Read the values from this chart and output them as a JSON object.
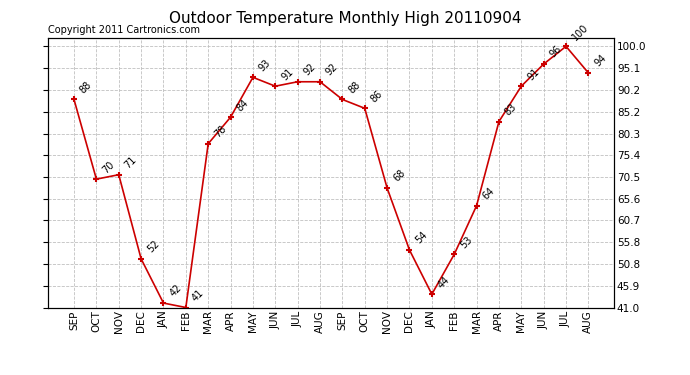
{
  "title": "Outdoor Temperature Monthly High 20110904",
  "copyright": "Copyright 2011 Cartronics.com",
  "months": [
    "SEP",
    "OCT",
    "NOV",
    "DEC",
    "JAN",
    "FEB",
    "MAR",
    "APR",
    "MAY",
    "JUN",
    "JUL",
    "AUG",
    "SEP",
    "OCT",
    "NOV",
    "DEC",
    "JAN",
    "FEB",
    "MAR",
    "APR",
    "MAY",
    "JUN",
    "JUL",
    "AUG"
  ],
  "values": [
    88,
    70,
    71,
    52,
    42,
    41,
    78,
    84,
    93,
    91,
    92,
    92,
    88,
    86,
    68,
    54,
    44,
    53,
    64,
    83,
    91,
    96,
    100,
    94
  ],
  "line_color": "#cc0000",
  "marker_color": "#cc0000",
  "bg_color": "#ffffff",
  "grid_color": "#c0c0c0",
  "text_color": "#000000",
  "ylim": [
    41.0,
    102.0
  ],
  "yticks": [
    41.0,
    45.9,
    50.8,
    55.8,
    60.7,
    65.6,
    70.5,
    75.4,
    80.3,
    85.2,
    90.2,
    95.1,
    100.0
  ],
  "ytick_labels": [
    "41.0",
    "45.9",
    "50.8",
    "55.8",
    "60.7",
    "65.6",
    "70.5",
    "75.4",
    "80.3",
    "85.2",
    "90.2",
    "95.1",
    "100.0"
  ],
  "title_fontsize": 11,
  "label_fontsize": 7,
  "tick_fontsize": 7.5,
  "copyright_fontsize": 7
}
